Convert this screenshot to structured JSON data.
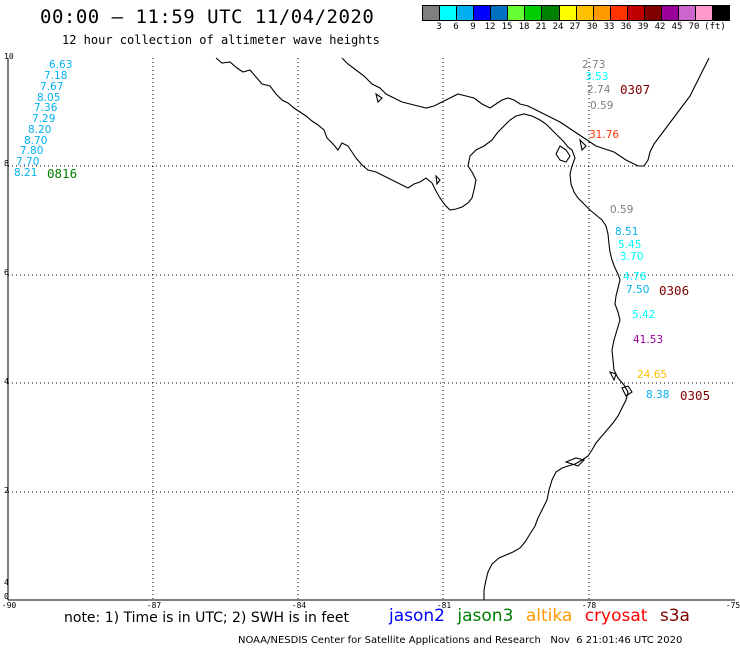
{
  "title": "00:00 – 11:59 UTC 11/04/2020",
  "subtitle": "12 hour collection of altimeter wave heights",
  "scale": {
    "colors": [
      "#7f7f7f",
      "#00ffff",
      "#00b0f0",
      "#0000ff",
      "#0070c0",
      "#66ff33",
      "#00cc00",
      "#008000",
      "#ffff00",
      "#ffc000",
      "#ff9900",
      "#ff3300",
      "#c00000",
      "#800000",
      "#990099",
      "#cc66cc",
      "#ff99cc",
      "#000000"
    ],
    "labels": [
      "3",
      "6",
      "9",
      "12",
      "15",
      "18",
      "21",
      "24",
      "27",
      "30",
      "33",
      "36",
      "39",
      "42",
      "45",
      "70",
      "(ft)"
    ]
  },
  "axes": {
    "lat_ticks": [
      "10",
      "8",
      "6",
      "4",
      "2",
      "0"
    ],
    "lon_ticks": [
      "-90",
      "-87",
      "-84",
      "-81",
      "-78",
      "-75"
    ],
    "lat_range": [
      0,
      10
    ],
    "lon_range": [
      -90,
      -75
    ],
    "grid": true,
    "extra_lat_label": "4"
  },
  "measurements": [
    {
      "text": "6.63",
      "color": "#00b0f0"
    },
    {
      "text": "7.18",
      "color": "#00b0f0"
    },
    {
      "text": "7.67",
      "color": "#00b0f0"
    },
    {
      "text": "8.05",
      "color": "#00b0f0"
    },
    {
      "text": "7.36",
      "color": "#00b0f0"
    },
    {
      "text": "7.29",
      "color": "#00b0f0"
    },
    {
      "text": "8.20",
      "color": "#00b0f0"
    },
    {
      "text": "8.70",
      "color": "#00b0f0"
    },
    {
      "text": "7.80",
      "color": "#00b0f0"
    },
    {
      "text": "7.70",
      "color": "#00b0f0"
    },
    {
      "text": "8.21",
      "color": "#00b0f0"
    },
    {
      "text": "2.73",
      "color": "#7f7f7f"
    },
    {
      "text": "3.53",
      "color": "#00ffff"
    },
    {
      "text": "2.74",
      "color": "#7f7f7f"
    },
    {
      "text": "0.59",
      "color": "#7f7f7f"
    },
    {
      "text": "31.76",
      "color": "#ff3300"
    },
    {
      "text": "0.59",
      "color": "#7f7f7f"
    },
    {
      "text": "8.51",
      "color": "#00b0f0"
    },
    {
      "text": "5.45",
      "color": "#00ffff"
    },
    {
      "text": "3.70",
      "color": "#00ffff"
    },
    {
      "text": "4.76",
      "color": "#00ffff"
    },
    {
      "text": "7.50",
      "color": "#00b0f0"
    },
    {
      "text": "5.42",
      "color": "#00ffff"
    },
    {
      "text": "41.53",
      "color": "#990099"
    },
    {
      "text": "24.65",
      "color": "#ffc000"
    },
    {
      "text": "8.38",
      "color": "#00b0f0"
    }
  ],
  "pass_times": [
    {
      "text": "0816",
      "color": "#008000"
    },
    {
      "text": "0307",
      "color": "#800000"
    },
    {
      "text": "0306",
      "color": "#800000"
    },
    {
      "text": "0305",
      "color": "#800000"
    }
  ],
  "note": "note: 1) Time is in UTC; 2) SWH is in feet",
  "legend": [
    {
      "name": "jason2",
      "color": "#0000ff"
    },
    {
      "name": "jason3",
      "color": "#008000"
    },
    {
      "name": "altika",
      "color": "#ff9900"
    },
    {
      "name": "cryosat",
      "color": "#ff0000"
    },
    {
      "name": "s3a",
      "color": "#800000"
    }
  ],
  "footer": "NOAA/NESDIS Center for Satellite Applications and Research   Nov  6 21:01:46 UTC 2020"
}
